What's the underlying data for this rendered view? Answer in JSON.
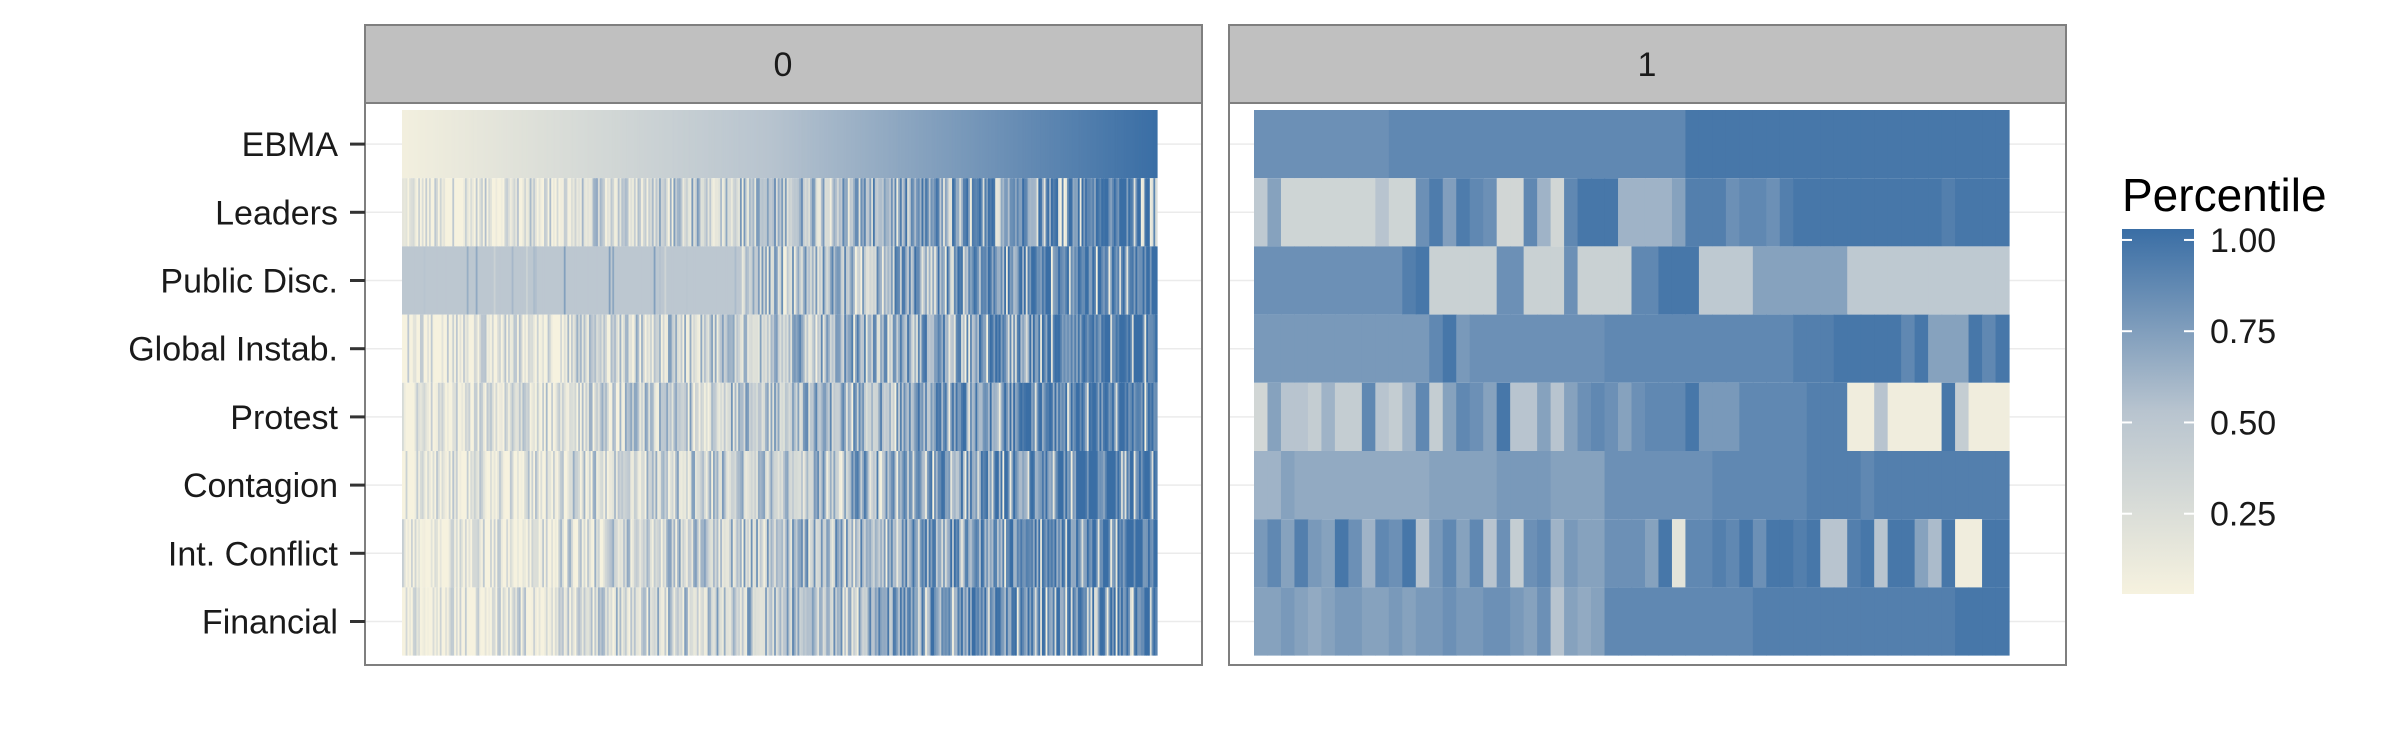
{
  "chart_data": {
    "type": "heatmap",
    "facets": [
      "0",
      "1"
    ],
    "rows": [
      "EBMA",
      "Leaders",
      "Public Disc.",
      "Global Instab.",
      "Protest",
      "Contagion",
      "Int. Conflict",
      "Financial"
    ],
    "legend": {
      "title": "Percentile",
      "ticks": [
        {
          "value": 1.0,
          "label": "1.00"
        },
        {
          "value": 0.75,
          "label": "0.75"
        },
        {
          "value": 0.5,
          "label": "0.50"
        },
        {
          "value": 0.25,
          "label": "0.25"
        }
      ],
      "range": [
        0.03,
        1.03
      ],
      "placement": "right"
    },
    "color_low": "#f6f2df",
    "color_mid": "#b8c4cf",
    "color_high": "#3a6ea5",
    "panel0_rows": {
      "EBMA": {
        "pattern": "smooth-gradient"
      },
      "Public Disc.": {
        "pattern": "constant-then-noisy",
        "constant_value": 0.47,
        "constant_fraction": 0.45
      }
    },
    "panel1_values": [
      [
        0.8,
        0.8,
        0.8,
        0.8,
        0.8,
        0.8,
        0.8,
        0.8,
        0.8,
        0.8,
        0.85,
        0.85,
        0.85,
        0.85,
        0.85,
        0.85,
        0.85,
        0.85,
        0.85,
        0.85,
        0.85,
        0.85,
        0.85,
        0.85,
        0.85,
        0.85,
        0.85,
        0.85,
        0.85,
        0.85,
        0.85,
        0.85,
        0.95,
        0.95,
        0.95,
        0.95,
        0.95,
        0.95,
        0.95,
        0.95,
        0.95,
        0.95,
        0.95,
        0.95,
        0.95,
        0.95,
        0.95,
        0.95,
        0.95,
        0.95,
        0.95,
        0.95,
        0.95,
        0.95,
        0.95,
        0.95
      ],
      [
        0.45,
        0.7,
        0.32,
        0.32,
        0.32,
        0.32,
        0.32,
        0.32,
        0.32,
        0.5,
        0.32,
        0.32,
        0.8,
        0.92,
        0.72,
        0.92,
        0.85,
        0.8,
        0.3,
        0.3,
        0.85,
        0.6,
        0.3,
        0.85,
        0.95,
        0.95,
        0.95,
        0.6,
        0.6,
        0.6,
        0.6,
        0.7,
        0.9,
        0.9,
        0.9,
        0.8,
        0.85,
        0.85,
        0.8,
        0.9,
        0.95,
        0.95,
        0.95,
        0.95,
        0.95,
        0.95,
        0.95,
        0.95,
        0.95,
        0.95,
        0.95,
        0.9,
        0.95,
        0.95,
        0.95,
        0.95
      ],
      [
        0.8,
        0.8,
        0.8,
        0.8,
        0.8,
        0.8,
        0.8,
        0.8,
        0.8,
        0.8,
        0.8,
        0.9,
        0.95,
        0.36,
        0.36,
        0.36,
        0.36,
        0.36,
        0.8,
        0.8,
        0.36,
        0.36,
        0.36,
        0.8,
        0.36,
        0.36,
        0.36,
        0.36,
        0.85,
        0.85,
        0.95,
        0.95,
        0.95,
        0.45,
        0.45,
        0.45,
        0.45,
        0.7,
        0.7,
        0.7,
        0.7,
        0.7,
        0.7,
        0.7,
        0.45,
        0.45,
        0.45,
        0.45,
        0.45,
        0.45,
        0.45,
        0.45,
        0.45,
        0.45,
        0.45,
        0.45
      ],
      [
        0.75,
        0.75,
        0.75,
        0.75,
        0.75,
        0.75,
        0.75,
        0.75,
        0.75,
        0.75,
        0.75,
        0.75,
        0.75,
        0.85,
        0.95,
        0.75,
        0.8,
        0.8,
        0.8,
        0.8,
        0.8,
        0.8,
        0.8,
        0.8,
        0.8,
        0.8,
        0.85,
        0.85,
        0.85,
        0.85,
        0.85,
        0.85,
        0.85,
        0.85,
        0.85,
        0.85,
        0.85,
        0.85,
        0.85,
        0.85,
        0.9,
        0.9,
        0.9,
        0.95,
        0.95,
        0.95,
        0.95,
        0.95,
        0.85,
        0.95,
        0.7,
        0.7,
        0.7,
        0.95,
        0.85,
        0.95
      ],
      [
        0.3,
        0.7,
        0.5,
        0.5,
        0.4,
        0.6,
        0.4,
        0.4,
        0.85,
        0.5,
        0.4,
        0.6,
        0.85,
        0.4,
        0.7,
        0.85,
        0.8,
        0.7,
        0.95,
        0.5,
        0.5,
        0.7,
        0.5,
        0.7,
        0.8,
        0.85,
        0.8,
        0.7,
        0.8,
        0.85,
        0.85,
        0.85,
        0.95,
        0.75,
        0.75,
        0.75,
        0.85,
        0.85,
        0.85,
        0.85,
        0.85,
        0.9,
        0.9,
        0.9,
        0.05,
        0.05,
        0.5,
        0.05,
        0.05,
        0.05,
        0.05,
        0.95,
        0.4,
        0.05,
        0.05,
        0.05
      ],
      [
        0.6,
        0.6,
        0.7,
        0.65,
        0.65,
        0.65,
        0.65,
        0.65,
        0.65,
        0.65,
        0.65,
        0.65,
        0.65,
        0.7,
        0.7,
        0.7,
        0.7,
        0.7,
        0.75,
        0.75,
        0.75,
        0.75,
        0.7,
        0.7,
        0.7,
        0.7,
        0.8,
        0.8,
        0.8,
        0.8,
        0.8,
        0.8,
        0.8,
        0.8,
        0.85,
        0.85,
        0.85,
        0.85,
        0.85,
        0.85,
        0.85,
        0.9,
        0.9,
        0.9,
        0.9,
        0.85,
        0.9,
        0.9,
        0.9,
        0.9,
        0.9,
        0.9,
        0.9,
        0.9,
        0.9,
        0.9
      ],
      [
        0.75,
        0.85,
        0.7,
        0.9,
        0.75,
        0.7,
        0.95,
        0.8,
        0.6,
        0.85,
        0.8,
        0.95,
        0.5,
        0.75,
        0.85,
        0.7,
        0.85,
        0.5,
        0.8,
        0.4,
        0.8,
        0.85,
        0.6,
        0.75,
        0.7,
        0.7,
        0.8,
        0.8,
        0.8,
        0.7,
        0.95,
        0.15,
        0.85,
        0.85,
        0.9,
        0.85,
        0.95,
        0.8,
        0.95,
        0.95,
        0.9,
        0.95,
        0.5,
        0.5,
        0.9,
        0.95,
        0.5,
        0.95,
        0.95,
        0.7,
        0.55,
        0.95,
        0.05,
        0.05,
        0.95,
        0.95
      ],
      [
        0.7,
        0.7,
        0.75,
        0.7,
        0.65,
        0.7,
        0.75,
        0.75,
        0.7,
        0.7,
        0.75,
        0.7,
        0.75,
        0.75,
        0.8,
        0.75,
        0.75,
        0.8,
        0.8,
        0.75,
        0.7,
        0.8,
        0.5,
        0.7,
        0.65,
        0.7,
        0.85,
        0.85,
        0.85,
        0.85,
        0.85,
        0.85,
        0.85,
        0.85,
        0.85,
        0.85,
        0.85,
        0.9,
        0.9,
        0.9,
        0.9,
        0.9,
        0.9,
        0.9,
        0.9,
        0.9,
        0.9,
        0.9,
        0.9,
        0.9,
        0.9,
        0.9,
        0.95,
        0.95,
        0.95,
        0.95
      ]
    ]
  }
}
